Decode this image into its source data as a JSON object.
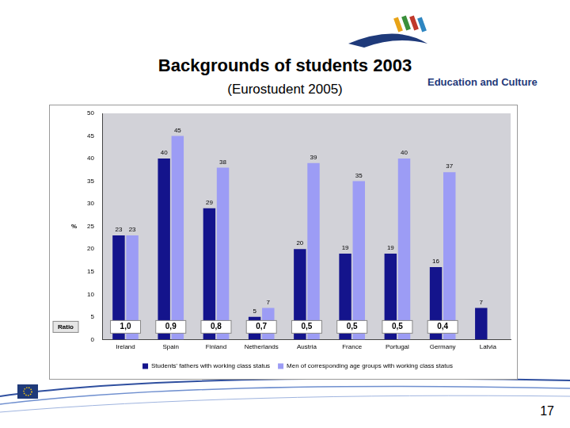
{
  "chart_data": {
    "type": "bar",
    "title": "Backgrounds of students 2003",
    "subtitle": "(Eurostudent 2005)",
    "y_label": "%",
    "categories": [
      "Ireland",
      "Spain",
      "Finland",
      "Netherlands",
      "Austria",
      "France",
      "Portugal",
      "Germany",
      "Latvia"
    ],
    "series": [
      {
        "name": "Students' fathers with working class status",
        "color": "#14148c",
        "values": [
          23,
          40,
          29,
          5,
          20,
          19,
          19,
          16,
          7
        ]
      },
      {
        "name": "Men of corresponding age groups with working class status",
        "color": "#9c9cf5",
        "values": [
          23,
          45,
          38,
          7,
          39,
          35,
          40,
          37,
          null
        ]
      }
    ],
    "ratio_label": "Ratio",
    "ratios": [
      1.0,
      0.9,
      0.8,
      0.7,
      0.5,
      0.5,
      0.5,
      0.4,
      null
    ],
    "ratio_labels": [
      "1,0",
      "0,9",
      "0,8",
      "0,7",
      "0,5",
      "0,5",
      "0,5",
      "0,4",
      null
    ],
    "ylim": [
      0,
      50
    ],
    "yticks": [
      0,
      5,
      10,
      15,
      20,
      25,
      30,
      35,
      40,
      45,
      50
    ],
    "grid": false,
    "legend": "bottom",
    "data_labels": true
  },
  "slide": {
    "logo_text": "Education and Culture",
    "page_number": "17"
  }
}
